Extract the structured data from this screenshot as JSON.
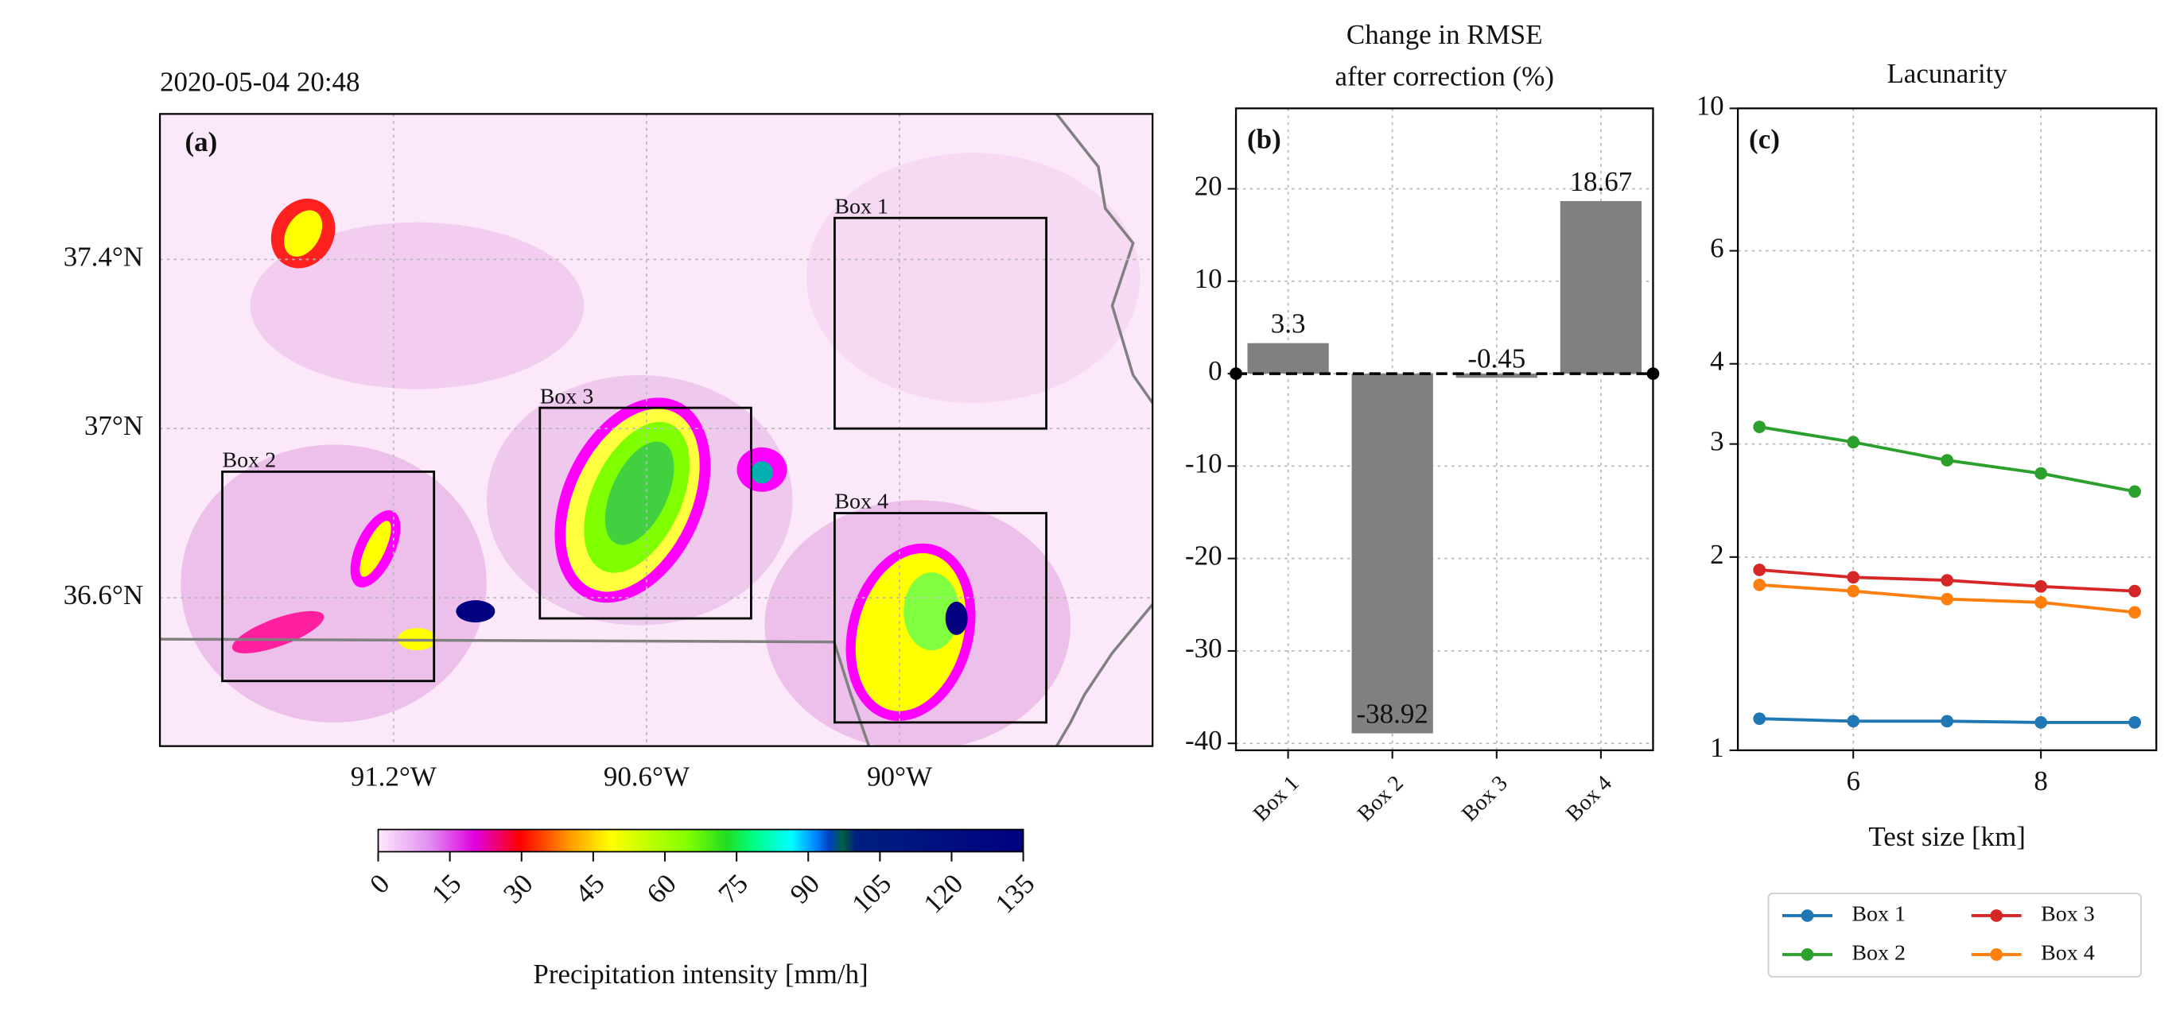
{
  "chart_data": [
    {
      "type": "map",
      "title": "2020-05-04 20:48",
      "panel": "(a)",
      "xlim": [
        -91.754,
        -89.4
      ],
      "ylim": [
        36.249,
        37.744
      ],
      "xticks": [
        {
          "value": -91.2,
          "label": "91.2°W"
        },
        {
          "value": -90.6,
          "label": "90.6°W"
        },
        {
          "value": -90,
          "label": "90°W"
        }
      ],
      "yticks": [
        {
          "value": 37.4,
          "label": "37.4°N"
        },
        {
          "value": 37,
          "label": "37°N"
        },
        {
          "value": 36.6,
          "label": "36.6°N"
        }
      ],
      "grid": true,
      "boxes": [
        {
          "label": "Box 1",
          "lon": [
            -90.154,
            -89.652
          ],
          "lat": [
            37.0,
            37.498
          ]
        },
        {
          "label": "Box 2",
          "lon": [
            -91.606,
            -91.104
          ],
          "lat": [
            36.403,
            36.898
          ]
        },
        {
          "label": "Box 3",
          "lon": [
            -90.853,
            -90.352
          ],
          "lat": [
            36.551,
            37.049
          ]
        },
        {
          "label": "Box 4",
          "lon": [
            -90.154,
            -89.652
          ],
          "lat": [
            36.305,
            36.8
          ]
        }
      ],
      "colorbar": {
        "label": "Precipitation intensity [mm/h]",
        "lim": [
          0,
          135
        ],
        "ticks": [
          0,
          15,
          30,
          45,
          60,
          75,
          90,
          105,
          120,
          135
        ]
      }
    },
    {
      "type": "bar",
      "title": [
        "Change in RMSE",
        "after correction (%)"
      ],
      "panel": "(b)",
      "categories": [
        "Box 1",
        "Box 2",
        "Box 3",
        "Box 4"
      ],
      "values": [
        3.3,
        -38.92,
        -0.45,
        18.67
      ],
      "color": "#808080",
      "ylim": [
        -40.75,
        28.7
      ],
      "yticks": [
        -40,
        -30,
        -20,
        -10,
        0,
        10,
        20
      ],
      "grid": true,
      "reference_line": 0
    },
    {
      "type": "line",
      "title": "Lacunarity",
      "panel": "(c)",
      "xlabel": "Test size [km]",
      "x": [
        5,
        6,
        7,
        8,
        9
      ],
      "xlim": [
        4.77,
        9.23
      ],
      "xticks": [
        6,
        8
      ],
      "ylim": [
        1,
        10
      ],
      "yticks": [
        1,
        2,
        3,
        4,
        6,
        10
      ],
      "log_y": true,
      "grid": true,
      "legend": "below",
      "series": [
        {
          "name": "Box 1",
          "color": "#1f77b4",
          "values": [
            1.12,
            1.11,
            1.11,
            1.105,
            1.105
          ]
        },
        {
          "name": "Box 2",
          "color": "#2ca02c",
          "values": [
            3.19,
            3.02,
            2.83,
            2.7,
            2.53
          ]
        },
        {
          "name": "Box 3",
          "color": "#d62728",
          "values": [
            1.91,
            1.86,
            1.84,
            1.8,
            1.77
          ]
        },
        {
          "name": "Box 4",
          "color": "#ff7f0e",
          "values": [
            1.81,
            1.77,
            1.72,
            1.7,
            1.64
          ]
        }
      ]
    }
  ]
}
